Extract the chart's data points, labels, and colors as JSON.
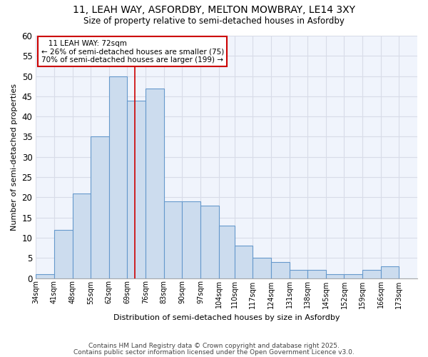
{
  "title1": "11, LEAH WAY, ASFORDBY, MELTON MOWBRAY, LE14 3XY",
  "title2": "Size of property relative to semi-detached houses in Asfordby",
  "xlabel": "Distribution of semi-detached houses by size in Asfordby",
  "ylabel": "Number of semi-detached properties",
  "bin_edges": [
    34,
    41,
    48,
    55,
    62,
    69,
    76,
    83,
    90,
    97,
    104,
    110,
    117,
    124,
    131,
    138,
    145,
    152,
    159,
    166,
    173,
    180
  ],
  "bar_heights": [
    1,
    12,
    21,
    35,
    50,
    44,
    47,
    19,
    19,
    18,
    13,
    8,
    5,
    4,
    2,
    2,
    1,
    1,
    2,
    3,
    0
  ],
  "bar_color": "#ccdcee",
  "bar_edge_color": "#6699cc",
  "red_line_x": 72,
  "annotation_title": "11 LEAH WAY: 72sqm",
  "annotation_line1": "← 26% of semi-detached houses are smaller (75)",
  "annotation_line2": "70% of semi-detached houses are larger (199) →",
  "annotation_box_color": "#cc0000",
  "ylim": [
    0,
    60
  ],
  "yticks": [
    0,
    5,
    10,
    15,
    20,
    25,
    30,
    35,
    40,
    45,
    50,
    55,
    60
  ],
  "xtick_labels": [
    "34sqm",
    "41sqm",
    "48sqm",
    "55sqm",
    "62sqm",
    "69sqm",
    "76sqm",
    "83sqm",
    "90sqm",
    "97sqm",
    "104sqm",
    "110sqm",
    "117sqm",
    "124sqm",
    "131sqm",
    "138sqm",
    "145sqm",
    "152sqm",
    "159sqm",
    "166sqm",
    "173sqm"
  ],
  "footer1": "Contains HM Land Registry data © Crown copyright and database right 2025.",
  "footer2": "Contains public sector information licensed under the Open Government Licence v3.0.",
  "background_color": "#ffffff",
  "plot_bg_color": "#f0f4fc",
  "grid_color": "#d8dce8"
}
